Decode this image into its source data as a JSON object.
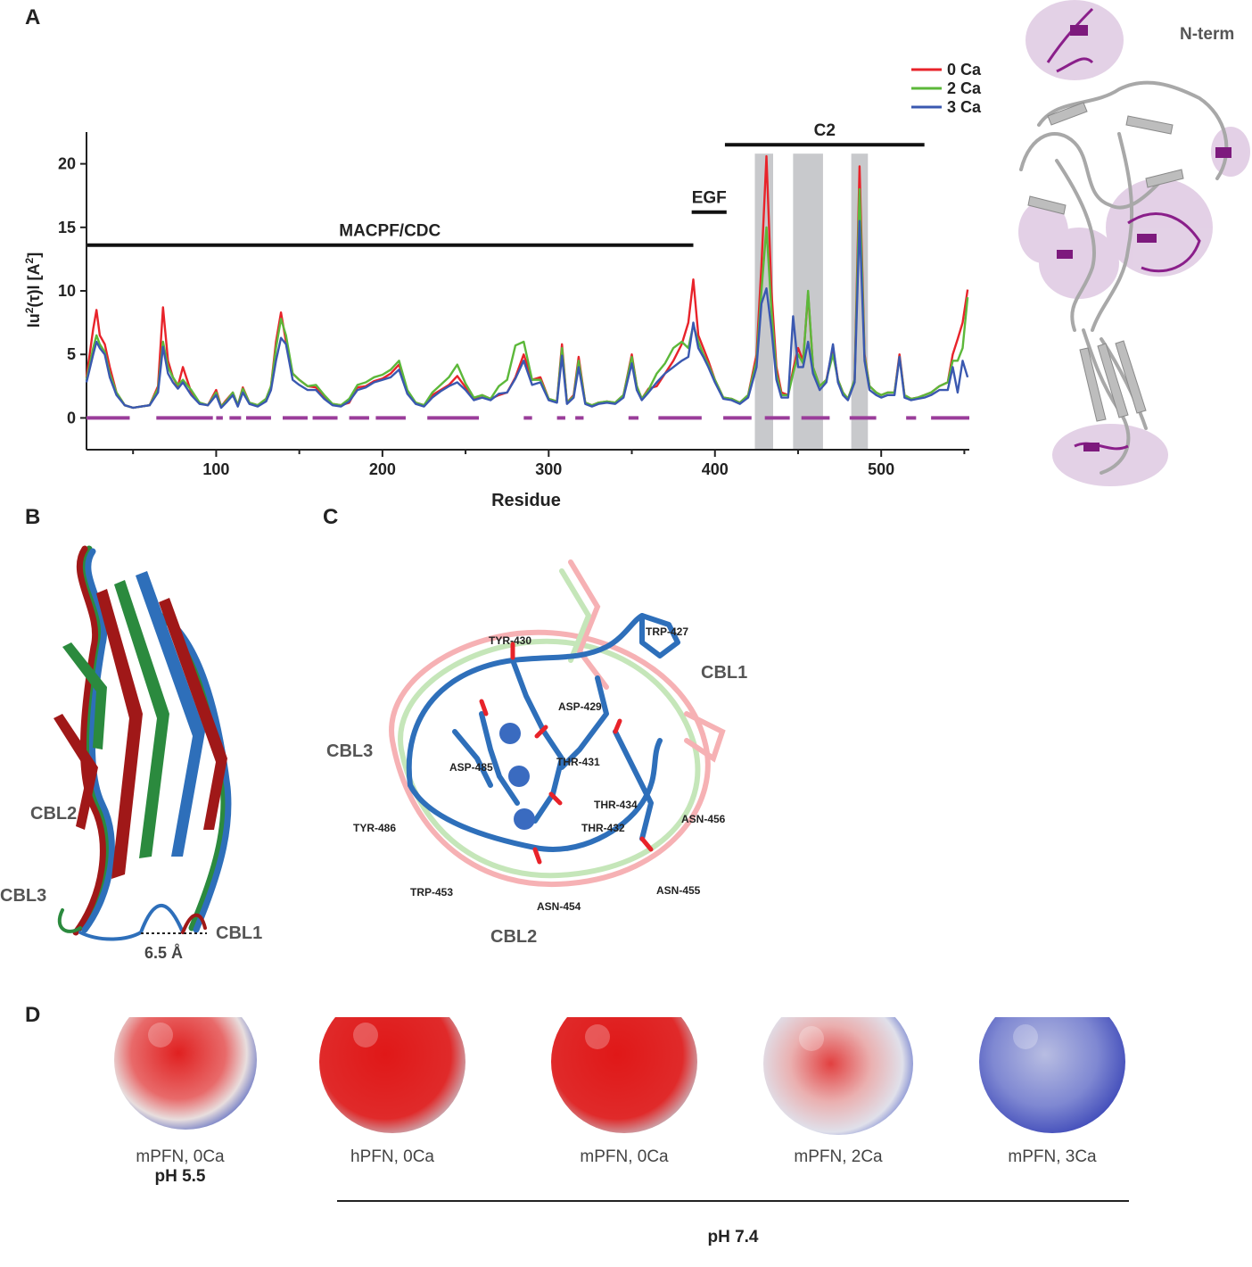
{
  "panels": {
    "a": "A",
    "b": "B",
    "c": "C",
    "d": "D"
  },
  "colors": {
    "ca0": "#e8232a",
    "ca2": "#5cb83a",
    "ca3": "#3a58b0",
    "purple_marks": "#9a3d9a",
    "shade": "#c8c9cc",
    "dark_red": "#a01818",
    "steel_blue": "#2e6fba",
    "green": "#2b8a3e"
  },
  "chart_data": {
    "type": "line",
    "xlabel": "Residue",
    "ylabel_main": "lu",
    "ylabel_sup": "2",
    "ylabel_tau": "(τ)l [A",
    "ylabel_sup2": "2",
    "ylabel_close": "]",
    "xlim": [
      22,
      553
    ],
    "ylim": [
      -2.5,
      22.5
    ],
    "xticks": [
      100,
      200,
      300,
      400,
      500
    ],
    "yticks": [
      0,
      5,
      10,
      15,
      20
    ],
    "legend": [
      "0 Ca",
      "2 Ca",
      "3 Ca"
    ],
    "legend_position": "top-right",
    "domains": [
      {
        "label": "MACPF/CDC",
        "start": 22,
        "end": 387,
        "y": 13.6
      },
      {
        "label": "EGF",
        "start": 386,
        "end": 407,
        "y": 16.2
      },
      {
        "label": "C2",
        "start": 406,
        "end": 526,
        "y": 21.5
      }
    ],
    "shaded_regions": [
      [
        424,
        435
      ],
      [
        447,
        465
      ],
      [
        482,
        492
      ]
    ],
    "purple_segments": [
      [
        22,
        48
      ],
      [
        64,
        98
      ],
      [
        100,
        104
      ],
      [
        108,
        115
      ],
      [
        118,
        133
      ],
      [
        140,
        155
      ],
      [
        158,
        173
      ],
      [
        180,
        192
      ],
      [
        196,
        214
      ],
      [
        227,
        258
      ],
      [
        285,
        290
      ],
      [
        305,
        310
      ],
      [
        316,
        321
      ],
      [
        348,
        354
      ],
      [
        366,
        392
      ],
      [
        405,
        422
      ],
      [
        430,
        445
      ],
      [
        452,
        469
      ],
      [
        481,
        497
      ],
      [
        515,
        521
      ],
      [
        530,
        553
      ]
    ],
    "x": [
      22,
      26,
      28,
      30,
      33,
      36,
      40,
      45,
      50,
      55,
      60,
      65,
      68,
      71,
      74,
      77,
      80,
      85,
      90,
      95,
      100,
      103,
      106,
      110,
      113,
      116,
      120,
      125,
      130,
      133,
      136,
      139,
      142,
      146,
      150,
      155,
      160,
      165,
      170,
      175,
      180,
      185,
      190,
      195,
      200,
      205,
      210,
      215,
      220,
      225,
      230,
      235,
      240,
      245,
      250,
      255,
      260,
      265,
      270,
      275,
      280,
      285,
      290,
      295,
      300,
      305,
      308,
      311,
      315,
      318,
      322,
      326,
      330,
      335,
      340,
      345,
      350,
      353,
      356,
      360,
      365,
      370,
      375,
      380,
      384,
      387,
      390,
      393,
      396,
      400,
      405,
      410,
      415,
      420,
      425,
      428,
      431,
      434,
      437,
      440,
      444,
      447,
      450,
      453,
      456,
      459,
      463,
      467,
      471,
      474,
      477,
      480,
      484,
      487,
      490,
      493,
      497,
      500,
      504,
      508,
      511,
      514,
      518,
      522,
      526,
      530,
      535,
      540,
      543,
      546,
      549,
      552
    ],
    "series": [
      {
        "name": "0 Ca",
        "values": [
          3.2,
          7.0,
          8.5,
          6.5,
          5.8,
          4.0,
          2.0,
          1.0,
          0.8,
          0.9,
          1.0,
          2.5,
          8.7,
          4.5,
          3.2,
          2.5,
          4.0,
          2.0,
          1.2,
          1.0,
          2.2,
          0.9,
          1.4,
          2.0,
          1.0,
          2.4,
          1.2,
          1.0,
          1.5,
          2.5,
          6.0,
          8.3,
          6.0,
          3.5,
          3.0,
          2.5,
          2.4,
          1.6,
          1.1,
          1.0,
          1.2,
          2.4,
          2.5,
          2.9,
          3.1,
          3.5,
          4.2,
          2.0,
          1.2,
          1.0,
          1.8,
          2.2,
          2.6,
          3.3,
          2.4,
          1.5,
          1.8,
          1.5,
          1.8,
          2.0,
          3.2,
          5.0,
          3.0,
          3.2,
          1.5,
          1.3,
          5.8,
          1.2,
          1.8,
          4.8,
          1.2,
          1.0,
          1.2,
          1.3,
          1.2,
          1.8,
          5.0,
          2.5,
          1.5,
          2.3,
          2.5,
          3.5,
          4.5,
          5.8,
          7.5,
          10.9,
          6.5,
          5.5,
          4.5,
          3.0,
          1.6,
          1.5,
          1.2,
          1.8,
          5.0,
          12.0,
          20.6,
          10.0,
          4.0,
          2.0,
          1.8,
          3.8,
          5.5,
          4.5,
          9.8,
          4.0,
          2.5,
          3.0,
          5.5,
          3.0,
          2.0,
          1.5,
          3.0,
          19.8,
          5.0,
          2.5,
          2.0,
          1.8,
          2.0,
          2.0,
          5.0,
          1.8,
          1.5,
          1.6,
          1.8,
          2.0,
          2.5,
          2.8,
          5.0,
          6.2,
          7.5,
          10.1
        ]
      },
      {
        "name": "2 Ca",
        "values": [
          3.0,
          5.5,
          6.5,
          5.8,
          5.2,
          3.5,
          2.0,
          1.0,
          0.8,
          0.9,
          1.0,
          2.3,
          6.0,
          4.0,
          3.2,
          2.6,
          3.0,
          2.2,
          1.2,
          1.0,
          2.0,
          0.9,
          1.3,
          2.0,
          1.0,
          2.3,
          1.2,
          1.0,
          1.5,
          2.5,
          5.5,
          7.8,
          6.5,
          3.5,
          3.0,
          2.5,
          2.6,
          1.8,
          1.1,
          1.0,
          1.5,
          2.6,
          2.8,
          3.2,
          3.4,
          3.8,
          4.5,
          2.2,
          1.2,
          1.0,
          2.0,
          2.6,
          3.2,
          4.2,
          2.7,
          1.6,
          1.8,
          1.5,
          2.5,
          3.0,
          5.7,
          6.0,
          3.0,
          3.0,
          1.5,
          1.3,
          5.5,
          1.2,
          1.7,
          4.5,
          1.2,
          1.0,
          1.2,
          1.3,
          1.2,
          1.8,
          4.8,
          2.5,
          1.5,
          2.2,
          3.5,
          4.3,
          5.5,
          6.0,
          5.5,
          7.3,
          6.0,
          5.0,
          4.2,
          3.0,
          1.6,
          1.5,
          1.2,
          1.8,
          4.5,
          10.0,
          15.0,
          8.5,
          3.5,
          1.8,
          1.8,
          3.5,
          5.0,
          4.3,
          10.0,
          4.0,
          2.5,
          3.0,
          5.0,
          3.0,
          2.0,
          1.5,
          3.0,
          18.0,
          4.8,
          2.5,
          2.0,
          1.8,
          2.0,
          2.0,
          4.8,
          1.8,
          1.5,
          1.6,
          1.8,
          2.0,
          2.5,
          2.8,
          4.5,
          4.5,
          5.5,
          9.5
        ]
      },
      {
        "name": "3 Ca",
        "values": [
          2.8,
          5.0,
          6.0,
          5.5,
          5.0,
          3.2,
          1.8,
          1.0,
          0.8,
          0.9,
          1.0,
          2.0,
          5.6,
          3.5,
          2.8,
          2.3,
          2.8,
          1.8,
          1.1,
          1.0,
          1.8,
          0.8,
          1.2,
          1.8,
          0.9,
          2.0,
          1.1,
          0.9,
          1.3,
          2.2,
          4.5,
          6.3,
          5.8,
          3.0,
          2.6,
          2.2,
          2.2,
          1.5,
          1.0,
          0.9,
          1.3,
          2.2,
          2.4,
          2.8,
          3.0,
          3.2,
          3.8,
          1.9,
          1.1,
          0.9,
          1.6,
          2.1,
          2.5,
          2.8,
          2.2,
          1.4,
          1.6,
          1.4,
          1.9,
          2.0,
          3.1,
          4.5,
          2.6,
          2.8,
          1.4,
          1.2,
          4.9,
          1.1,
          1.6,
          4.0,
          1.1,
          0.9,
          1.1,
          1.2,
          1.1,
          1.6,
          4.3,
          2.2,
          1.4,
          2.0,
          2.8,
          3.5,
          4.0,
          4.5,
          4.8,
          7.5,
          5.5,
          4.8,
          4.0,
          2.8,
          1.5,
          1.4,
          1.1,
          1.6,
          4.0,
          9.0,
          10.2,
          7.0,
          3.0,
          1.6,
          1.6,
          8.0,
          4.0,
          4.0,
          6.0,
          3.5,
          2.2,
          2.8,
          5.8,
          2.8,
          1.8,
          1.4,
          2.8,
          15.5,
          4.5,
          2.2,
          1.8,
          1.6,
          1.8,
          1.8,
          4.8,
          1.6,
          1.4,
          1.5,
          1.6,
          1.8,
          2.2,
          2.2,
          4.0,
          2.0,
          4.5,
          3.2
        ]
      }
    ]
  },
  "structure_a": {
    "label": "N-term"
  },
  "panel_b": {
    "labels": {
      "cbl1": "CBL1",
      "cbl2": "CBL2",
      "cbl3": "CBL3"
    },
    "distance": "6.5 Å"
  },
  "panel_c": {
    "loops": {
      "cbl1": "CBL1",
      "cbl2": "CBL2",
      "cbl3": "CBL3"
    },
    "residues": [
      "TYR-430",
      "TRP-427",
      "ASP-429",
      "THR-431",
      "ASP-485",
      "THR-434",
      "ASN-456",
      "TYR-486",
      "THR-432",
      "TRP-453",
      "ASN-454",
      "ASN-455"
    ]
  },
  "panel_d": {
    "surfaces": [
      {
        "name": "mPFN, 0Ca",
        "ph": "pH 5.5"
      },
      {
        "name": "hPFN, 0Ca",
        "ph": ""
      },
      {
        "name": "mPFN, 0Ca",
        "ph": ""
      },
      {
        "name": "mPFN, 2Ca",
        "ph": ""
      },
      {
        "name": "mPFN, 3Ca",
        "ph": ""
      }
    ],
    "group_label": "pH 7.4"
  }
}
